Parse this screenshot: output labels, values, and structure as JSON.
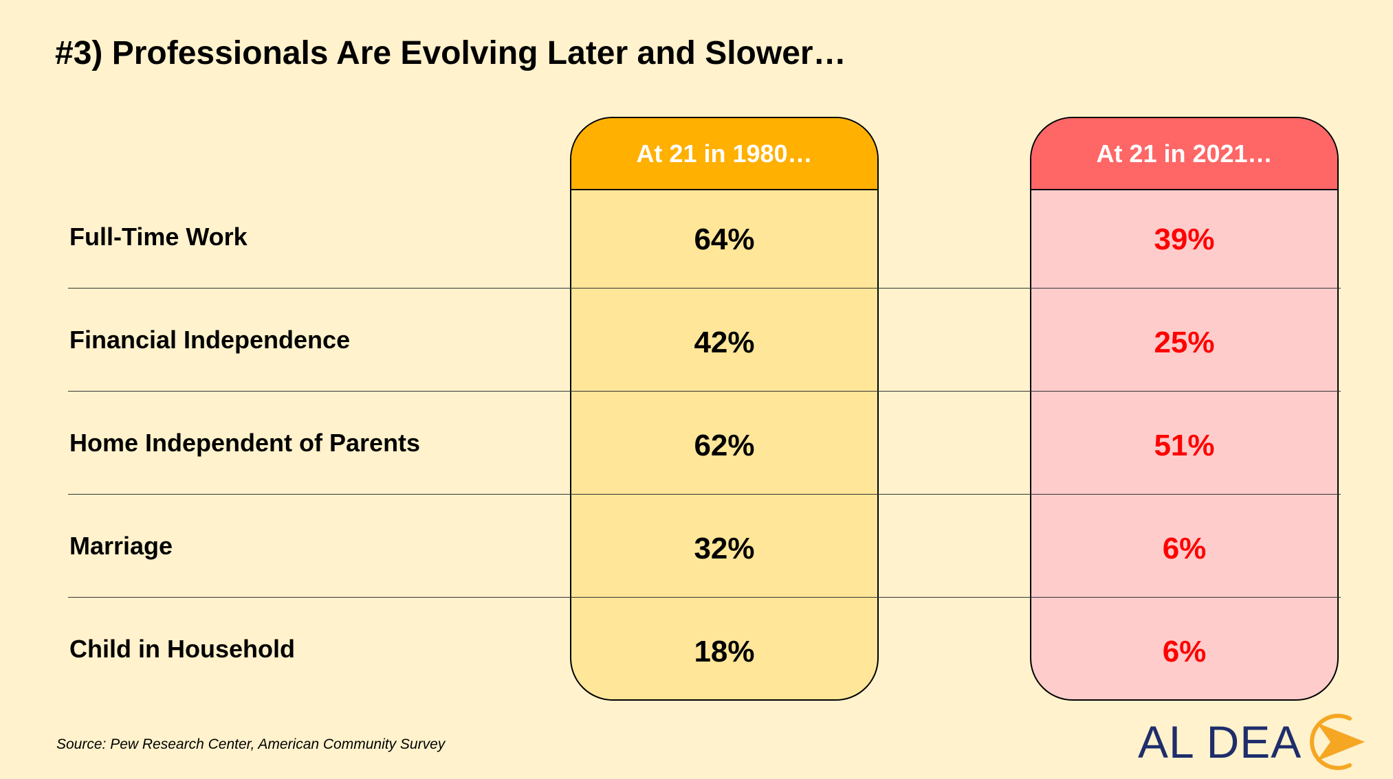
{
  "title": "#3) Professionals Are Evolving Later and Slower…",
  "columns": {
    "c1980": {
      "header": "At 21 in 1980…",
      "color": "#FFB000",
      "fill": "#FFE699"
    },
    "c2021": {
      "header": "At 21 in 2021…",
      "color": "#FF6666",
      "fill": "#FFCCCC"
    }
  },
  "rows": [
    {
      "label": "Full-Time Work",
      "v1980": "64%",
      "v2021": "39%"
    },
    {
      "label": "Financial Independence",
      "v1980": "42%",
      "v2021": "25%"
    },
    {
      "label": "Home Independent of Parents",
      "v1980": "62%",
      "v2021": "51%"
    },
    {
      "label": "Marriage",
      "v1980": "32%",
      "v2021": "6%"
    },
    {
      "label": "Child in Household",
      "v1980": "18%",
      "v2021": "6%"
    }
  ],
  "source": "Source: Pew Research Center, American Community Survey",
  "logo": {
    "text": "AL DEA",
    "icon": "arrow-circle-icon",
    "text_color": "#1F2D6B",
    "icon_color": "#F5A623"
  }
}
